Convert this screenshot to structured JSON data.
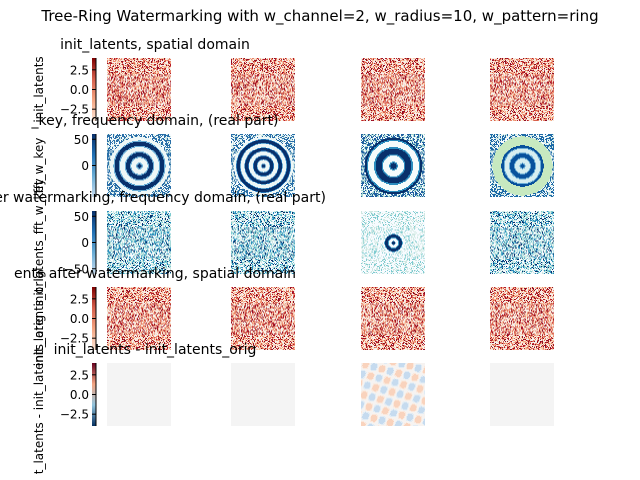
{
  "title": "Tree-Ring Watermarking with w_channel=2, w_radius=10, w_pattern=ring",
  "chart_data": [
    {
      "type": "heatmap",
      "title": "init_latents, spatial domain",
      "ylabel": "init_latents",
      "colormap": "RdBu_r",
      "yticks": [
        2.5,
        0.0,
        -2.5
      ],
      "ytick_labels": [
        "2.5",
        "0.0",
        "−2.5"
      ],
      "ylim": [
        -4,
        4
      ],
      "colorbar_colors": [
        "#7f0000",
        "#d6604d",
        "#f4a582",
        "#fbe5d6"
      ],
      "panel_pattern": "noise-warm",
      "panels": 4
    },
    {
      "type": "heatmap",
      "title": "_key, frequency domain, (real part)",
      "ylabel": "fft_w_key",
      "colormap": "GnBu/Blues",
      "yticks": [
        50,
        0
      ],
      "ytick_labels": [
        "50",
        "0"
      ],
      "ylim": [
        -60,
        60
      ],
      "colorbar_colors": [
        "#08306b",
        "#2171b5",
        "#6baed6",
        "#c6dbef"
      ],
      "panel_pattern": "rings",
      "panels": 4
    },
    {
      "type": "heatmap",
      "title": "fter watermarking, frequency domain, (real part)",
      "ylabel": "init_latents_fft_w_key",
      "colormap": "GnBu/Blues",
      "yticks": [
        50,
        0,
        -50
      ],
      "ytick_labels": [
        "50",
        "0",
        "−50"
      ],
      "ylim": [
        -60,
        60
      ],
      "colorbar_colors": [
        "#08306b",
        "#2171b5",
        "#6baed6",
        "#c6dbef"
      ],
      "panel_pattern": "noise-cool",
      "panels": 4
    },
    {
      "type": "heatmap",
      "title": "ents after watermarking, spatial domain",
      "ylabel": "init_latents_orig",
      "colormap": "RdBu_r",
      "yticks": [
        2.5,
        0.0,
        -2.5
      ],
      "ytick_labels": [
        "2.5",
        "0.0",
        "−2.5"
      ],
      "ylim": [
        -4,
        4
      ],
      "colorbar_colors": [
        "#7f0000",
        "#d6604d",
        "#f4a582",
        "#fbe5d6"
      ],
      "panel_pattern": "noise-warm",
      "panels": 4
    },
    {
      "type": "heatmap",
      "title": "init_latents - init_latents_orig",
      "ylabel": "t_latents - init_latents_orig",
      "colormap": "RdBu_r",
      "yticks": [
        2.5,
        0.0,
        -2.5
      ],
      "ytick_labels": [
        "2.5",
        "0.0",
        "−2.5"
      ],
      "ylim": [
        -4,
        4
      ],
      "colorbar_colors": [
        "#67001f",
        "#f4a582",
        "#92c5de",
        "#053061"
      ],
      "panel_pattern": "diff",
      "panels": 4
    }
  ]
}
